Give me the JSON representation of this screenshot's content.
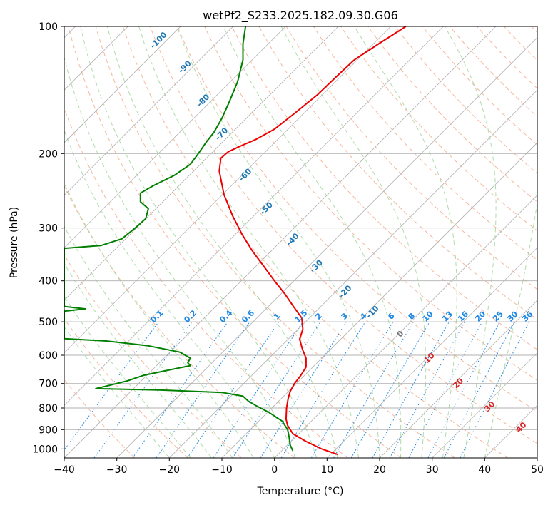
{
  "chart_data": {
    "type": "line",
    "title": "wetPf2_S233.2025.182.09.30.G06",
    "xlabel": "Temperature (°C)",
    "ylabel": "Pressure (hPa)",
    "xlim": [
      -40,
      50
    ],
    "ylim": [
      1050,
      100
    ],
    "y_scale": "log",
    "grid": true,
    "x_ticks": [
      -40,
      -30,
      -20,
      -10,
      0,
      10,
      20,
      30,
      40,
      50
    ],
    "y_ticks": [
      100,
      200,
      300,
      400,
      500,
      600,
      700,
      800,
      900,
      1000
    ],
    "series": [
      {
        "role": "temperature",
        "color": "#ee0000",
        "points": [
          {
            "p": 1030,
            "t": 12.0
          },
          {
            "p": 1000,
            "t": 9.0
          },
          {
            "p": 960,
            "t": 6.0
          },
          {
            "p": 920,
            "t": 3.5
          },
          {
            "p": 880,
            "t": 2.5
          },
          {
            "p": 850,
            "t": 2.2
          },
          {
            "p": 800,
            "t": 2.3
          },
          {
            "p": 760,
            "t": 2.6
          },
          {
            "p": 730,
            "t": 3.0
          },
          {
            "p": 700,
            "t": 3.8
          },
          {
            "p": 670,
            "t": 5.0
          },
          {
            "p": 640,
            "t": 6.0
          },
          {
            "p": 610,
            "t": 6.0
          },
          {
            "p": 580,
            "t": 5.3
          },
          {
            "p": 550,
            "t": 4.8
          },
          {
            "p": 520,
            "t": 5.4
          },
          {
            "p": 490,
            "t": 5.2
          },
          {
            "p": 460,
            "t": 3.6
          },
          {
            "p": 430,
            "t": 2.0
          },
          {
            "p": 400,
            "t": 0.0
          },
          {
            "p": 370,
            "t": -2.0
          },
          {
            "p": 340,
            "t": -4.2
          },
          {
            "p": 310,
            "t": -6.2
          },
          {
            "p": 280,
            "t": -8.0
          },
          {
            "p": 250,
            "t": -9.6
          },
          {
            "p": 220,
            "t": -10.5
          },
          {
            "p": 205,
            "t": -10.2
          },
          {
            "p": 198,
            "t": -8.8
          },
          {
            "p": 192,
            "t": -6.5
          },
          {
            "p": 185,
            "t": -3.5
          },
          {
            "p": 175,
            "t": 0.0
          },
          {
            "p": 160,
            "t": 4.0
          },
          {
            "p": 145,
            "t": 8.2
          },
          {
            "p": 130,
            "t": 12.2
          },
          {
            "p": 120,
            "t": 15.2
          },
          {
            "p": 110,
            "t": 19.8
          },
          {
            "p": 100,
            "t": 25.0
          }
        ]
      },
      {
        "role": "dewpoint",
        "color": "#008000",
        "points": [
          {
            "p": 1010,
            "t": 3.5
          },
          {
            "p": 980,
            "t": 3.0
          },
          {
            "p": 940,
            "t": 2.8
          },
          {
            "p": 900,
            "t": 2.5
          },
          {
            "p": 860,
            "t": 1.5
          },
          {
            "p": 820,
            "t": -1.0
          },
          {
            "p": 790,
            "t": -3.5
          },
          {
            "p": 770,
            "t": -5.0
          },
          {
            "p": 750,
            "t": -6.0
          },
          {
            "p": 735,
            "t": -10.0
          },
          {
            "p": 725,
            "t": -22.0
          },
          {
            "p": 720,
            "t": -34.0
          },
          {
            "p": 710,
            "t": -32.0
          },
          {
            "p": 690,
            "t": -28.0
          },
          {
            "p": 670,
            "t": -25.0
          },
          {
            "p": 650,
            "t": -20.0
          },
          {
            "p": 635,
            "t": -16.0
          },
          {
            "p": 625,
            "t": -16.5
          },
          {
            "p": 610,
            "t": -16.0
          },
          {
            "p": 590,
            "t": -18.0
          },
          {
            "p": 570,
            "t": -24.0
          },
          {
            "p": 555,
            "t": -32.0
          },
          {
            "p": 548,
            "t": -40.0
          },
          {
            "p": 472,
            "t": -40.0
          },
          {
            "p": 466,
            "t": -36.0
          },
          {
            "p": 460,
            "t": -40.0
          },
          {
            "p": 335,
            "t": -40.0
          },
          {
            "p": 330,
            "t": -33.0
          },
          {
            "p": 318,
            "t": -29.0
          },
          {
            "p": 300,
            "t": -26.5
          },
          {
            "p": 285,
            "t": -24.5
          },
          {
            "p": 270,
            "t": -24.0
          },
          {
            "p": 260,
            "t": -25.5
          },
          {
            "p": 248,
            "t": -25.5
          },
          {
            "p": 238,
            "t": -23.0
          },
          {
            "p": 225,
            "t": -19.0
          },
          {
            "p": 212,
            "t": -16.0
          },
          {
            "p": 200,
            "t": -14.5
          },
          {
            "p": 188,
            "t": -13.0
          },
          {
            "p": 178,
            "t": -11.5
          },
          {
            "p": 165,
            "t": -10.0
          },
          {
            "p": 150,
            "t": -8.5
          },
          {
            "p": 135,
            "t": -7.0
          },
          {
            "p": 120,
            "t": -6.0
          },
          {
            "p": 110,
            "t": -6.0
          },
          {
            "p": 100,
            "t": -5.5
          }
        ]
      }
    ],
    "isotherm_labels": [
      {
        "text": "-100",
        "at": [
          -22,
          108
        ]
      },
      {
        "text": "-90",
        "at": [
          -17,
          125
        ]
      },
      {
        "text": "-80",
        "at": [
          -13.5,
          150
        ]
      },
      {
        "text": "-70",
        "at": [
          -10,
          180
        ]
      },
      {
        "text": "-60",
        "at": [
          -5.5,
          225
        ]
      },
      {
        "text": "-50",
        "at": [
          -1.5,
          270
        ]
      },
      {
        "text": "-40",
        "at": [
          3.5,
          320
        ]
      },
      {
        "text": "-30",
        "at": [
          8,
          370
        ]
      },
      {
        "text": "-20",
        "at": [
          13.5,
          425
        ]
      },
      {
        "text": "-10",
        "at": [
          18.7,
          475
        ]
      },
      {
        "text": "0",
        "at": [
          24,
          535
        ]
      },
      {
        "text": "10",
        "at": [
          29.5,
          610
        ]
      },
      {
        "text": "20",
        "at": [
          35,
          700
        ]
      },
      {
        "text": "30",
        "at": [
          41,
          795
        ]
      },
      {
        "text": "40",
        "at": [
          47,
          890
        ]
      }
    ],
    "mixing_ratio_labels": [
      "0.1",
      "0.2",
      "0.4",
      "0.6",
      "1",
      "1.5",
      "2",
      "3",
      "4",
      "6",
      "8",
      "10",
      "13",
      "16",
      "20",
      "25",
      "30",
      "36"
    ],
    "mixing_ratio_values": [
      0.1,
      0.2,
      0.4,
      0.6,
      1,
      1.5,
      2,
      3,
      4,
      6,
      8,
      10,
      13,
      16,
      20,
      25,
      30,
      36
    ]
  },
  "colors": {
    "isotherm_label_cold": "#1f77b4",
    "isotherm_label_warm": "#d62728",
    "isotherm_label_zero": "#777777",
    "mixing_ratio": "#1e88e5",
    "dry_adiabat": "#f4a582",
    "moist_adiabat": "#a6d8a0",
    "grid": "#b0b0b0"
  }
}
